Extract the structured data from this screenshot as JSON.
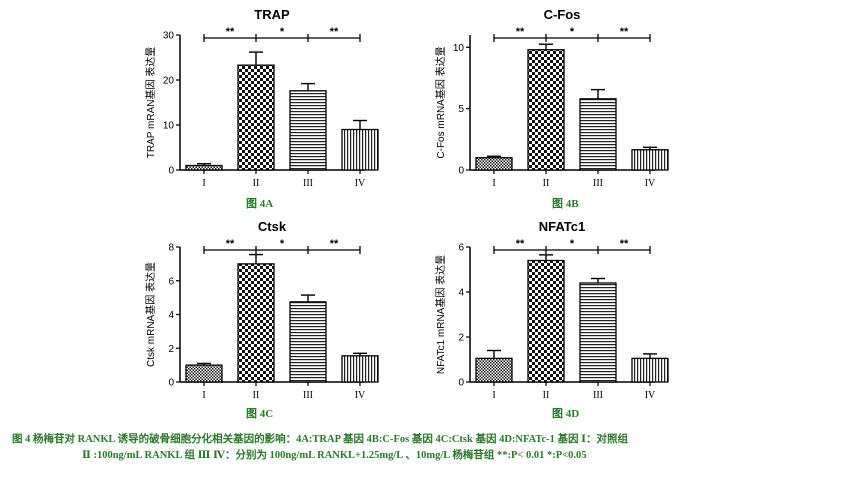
{
  "chart_data": [
    {
      "id": "4A",
      "type": "bar",
      "title": "TRAP",
      "ylabel": "TRAP mRAN基因 表达量",
      "xlabel": "",
      "categories": [
        "I",
        "II",
        "III",
        "IV"
      ],
      "values": [
        1.0,
        23.3,
        17.6,
        9.0
      ],
      "errors": [
        0.4,
        2.9,
        1.6,
        2.0
      ],
      "patterns": [
        "dots",
        "check",
        "hlines",
        "vlines"
      ],
      "ylim": [
        0,
        30
      ],
      "yticks": [
        0,
        10,
        20,
        30
      ],
      "significance": [
        {
          "from": 0,
          "to": 1,
          "label": "**"
        },
        {
          "from": 1,
          "to": 2,
          "label": "*"
        },
        {
          "from": 2,
          "to": 3,
          "label": "**"
        }
      ],
      "fig_label": "图 4A"
    },
    {
      "id": "4B",
      "type": "bar",
      "title": "C-Fos",
      "ylabel": "C-Fos mRNA基因 表达量",
      "xlabel": "",
      "categories": [
        "I",
        "II",
        "III",
        "IV"
      ],
      "values": [
        1.0,
        9.8,
        5.8,
        1.65
      ],
      "errors": [
        0.12,
        0.45,
        0.75,
        0.2
      ],
      "patterns": [
        "dots",
        "check",
        "hlines",
        "vlines"
      ],
      "ylim": [
        0,
        11
      ],
      "yticks": [
        0,
        5,
        10
      ],
      "significance": [
        {
          "from": 0,
          "to": 1,
          "label": "**"
        },
        {
          "from": 1,
          "to": 2,
          "label": "*"
        },
        {
          "from": 2,
          "to": 3,
          "label": "**"
        }
      ],
      "fig_label": "图 4B"
    },
    {
      "id": "4C",
      "type": "bar",
      "title": "Ctsk",
      "ylabel": "Ctsk mRNA基因 表达量",
      "xlabel": "",
      "categories": [
        "I",
        "II",
        "III",
        "IV"
      ],
      "values": [
        1.0,
        7.0,
        4.75,
        1.55
      ],
      "errors": [
        0.1,
        0.55,
        0.4,
        0.15
      ],
      "patterns": [
        "dots",
        "check",
        "hlines",
        "vlines"
      ],
      "ylim": [
        0,
        8
      ],
      "yticks": [
        0,
        2,
        4,
        6,
        8
      ],
      "significance": [
        {
          "from": 0,
          "to": 1,
          "label": "**"
        },
        {
          "from": 1,
          "to": 2,
          "label": "*"
        },
        {
          "from": 2,
          "to": 3,
          "label": "**"
        }
      ],
      "fig_label": "图 4C"
    },
    {
      "id": "4D",
      "type": "bar",
      "title": "NFATc1",
      "ylabel": "NFATc1 mRNA基因 表达量",
      "xlabel": "",
      "categories": [
        "I",
        "II",
        "III",
        "IV"
      ],
      "values": [
        1.05,
        5.4,
        4.4,
        1.05
      ],
      "errors": [
        0.35,
        0.25,
        0.2,
        0.2
      ],
      "patterns": [
        "dots",
        "check",
        "hlines",
        "vlines"
      ],
      "ylim": [
        0,
        6
      ],
      "yticks": [
        0,
        2,
        4,
        6
      ],
      "significance": [
        {
          "from": 0,
          "to": 1,
          "label": "**"
        },
        {
          "from": 1,
          "to": 2,
          "label": "*"
        },
        {
          "from": 2,
          "to": 3,
          "label": "**"
        }
      ],
      "fig_label": "图 4D"
    }
  ],
  "caption": {
    "line1": "图 4  杨梅苷对 RANKL 诱导的破骨细胞分化相关基因的影响：4A:TRAP 基因      4B:C-Fos 基因  4C:Ctsk 基因  4D:NFATc-1 基因  Ⅰ：对照组",
    "line2": "Ⅱ :100ng/mL RANKL 组  Ⅲ Ⅳ：分别为 100ng/mL RANKL+1.25mg/L 、10mg/L 杨梅苷组   **:P< 0.01 *:P<0.05"
  },
  "colors": {
    "text": "#000000",
    "caption": "#2a7a2a"
  }
}
